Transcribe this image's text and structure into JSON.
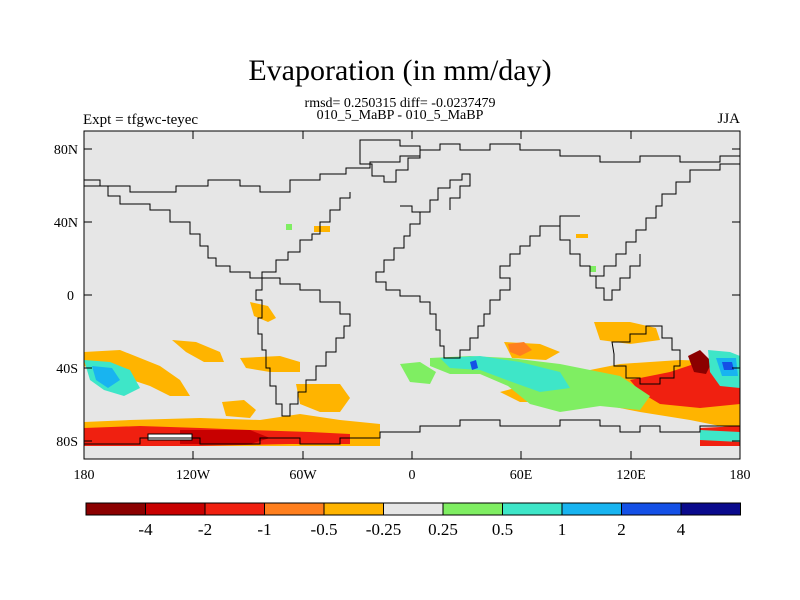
{
  "title": "Evaporation (in mm/day)",
  "stats_text": "rmsd= 0.250315 diff= -0.0237479",
  "cases_text": "010_5_MaBP - 010_5_MaBP",
  "expt_text": "Expt = tfgwc-teyec",
  "season": "JJA",
  "y_ticks": [
    "80N",
    "40N",
    "0",
    "40S",
    "80S"
  ],
  "x_ticks": [
    "180",
    "120W",
    "60W",
    "0",
    "60E",
    "120E",
    "180"
  ],
  "colorbar": {
    "colors": [
      "#8b0000",
      "#c80000",
      "#f02010",
      "#ff7f1e",
      "#ffb400",
      "#e6e6e6",
      "#7fee62",
      "#3ee6c8",
      "#18b4f0",
      "#1450e6",
      "#0a0a8c"
    ],
    "labels": [
      "-4",
      "-2",
      "-1",
      "-0.5",
      "-0.25",
      "0.25",
      "0.5",
      "1",
      "2",
      "4"
    ]
  },
  "map_background": "#e6e6e6"
}
